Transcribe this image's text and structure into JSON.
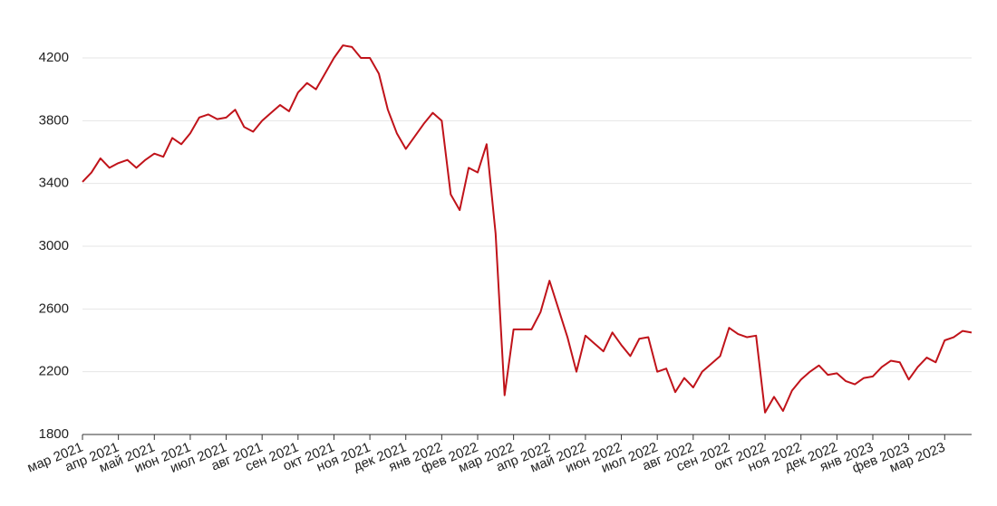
{
  "chart_data": {
    "type": "line",
    "categories": [
      "мар 2021",
      null,
      null,
      null,
      "апр 2021",
      null,
      null,
      null,
      "май 2021",
      null,
      null,
      null,
      "июн 2021",
      null,
      null,
      null,
      "июл 2021",
      null,
      null,
      null,
      "авг 2021",
      null,
      null,
      null,
      "сен 2021",
      null,
      null,
      null,
      "окт 2021",
      null,
      null,
      null,
      "ноя 2021",
      null,
      null,
      null,
      "дек 2021",
      null,
      null,
      null,
      "янв 2022",
      null,
      null,
      null,
      "фев 2022",
      null,
      null,
      null,
      "мар 2022",
      null,
      null,
      null,
      "апр 2022",
      null,
      null,
      null,
      "май 2022",
      null,
      null,
      null,
      "июн 2022",
      null,
      null,
      null,
      "июл 2022",
      null,
      null,
      null,
      "авг 2022",
      null,
      null,
      null,
      "сен 2022",
      null,
      null,
      null,
      "окт 2022",
      null,
      null,
      null,
      "ноя 2022",
      null,
      null,
      null,
      "дек 2022",
      null,
      null,
      null,
      "янв 2023",
      null,
      null,
      null,
      "фев 2023",
      null,
      null,
      null,
      "мар 2023",
      null,
      null,
      null
    ],
    "values": [
      3410,
      3470,
      3560,
      3500,
      3530,
      3550,
      3500,
      3550,
      3590,
      3570,
      3690,
      3650,
      3720,
      3820,
      3840,
      3810,
      3820,
      3870,
      3760,
      3730,
      3800,
      3850,
      3900,
      3860,
      3980,
      4040,
      4000,
      4100,
      4200,
      4280,
      4270,
      4200,
      4200,
      4100,
      3870,
      3720,
      3620,
      3700,
      3780,
      3850,
      3800,
      3330,
      3230,
      3500,
      3470,
      3650,
      3080,
      2050,
      2470,
      2470,
      2470,
      2580,
      2780,
      2600,
      2420,
      2200,
      2430,
      2380,
      2330,
      2450,
      2370,
      2300,
      2410,
      2420,
      2200,
      2220,
      2070,
      2160,
      2100,
      2200,
      2250,
      2300,
      2480,
      2440,
      2420,
      2430,
      1940,
      2040,
      1950,
      2080,
      2150,
      2200,
      2240,
      2180,
      2190,
      2140,
      2120,
      2160,
      2170,
      2230,
      2270,
      2260,
      2150,
      2230,
      2290,
      2260,
      2400,
      2420,
      2460,
      2450
    ],
    "color": "#c0131a",
    "ylim": [
      1800,
      4300
    ],
    "yticks": [
      1800,
      2200,
      2600,
      3000,
      3400,
      3800,
      4200
    ],
    "grid": true
  }
}
